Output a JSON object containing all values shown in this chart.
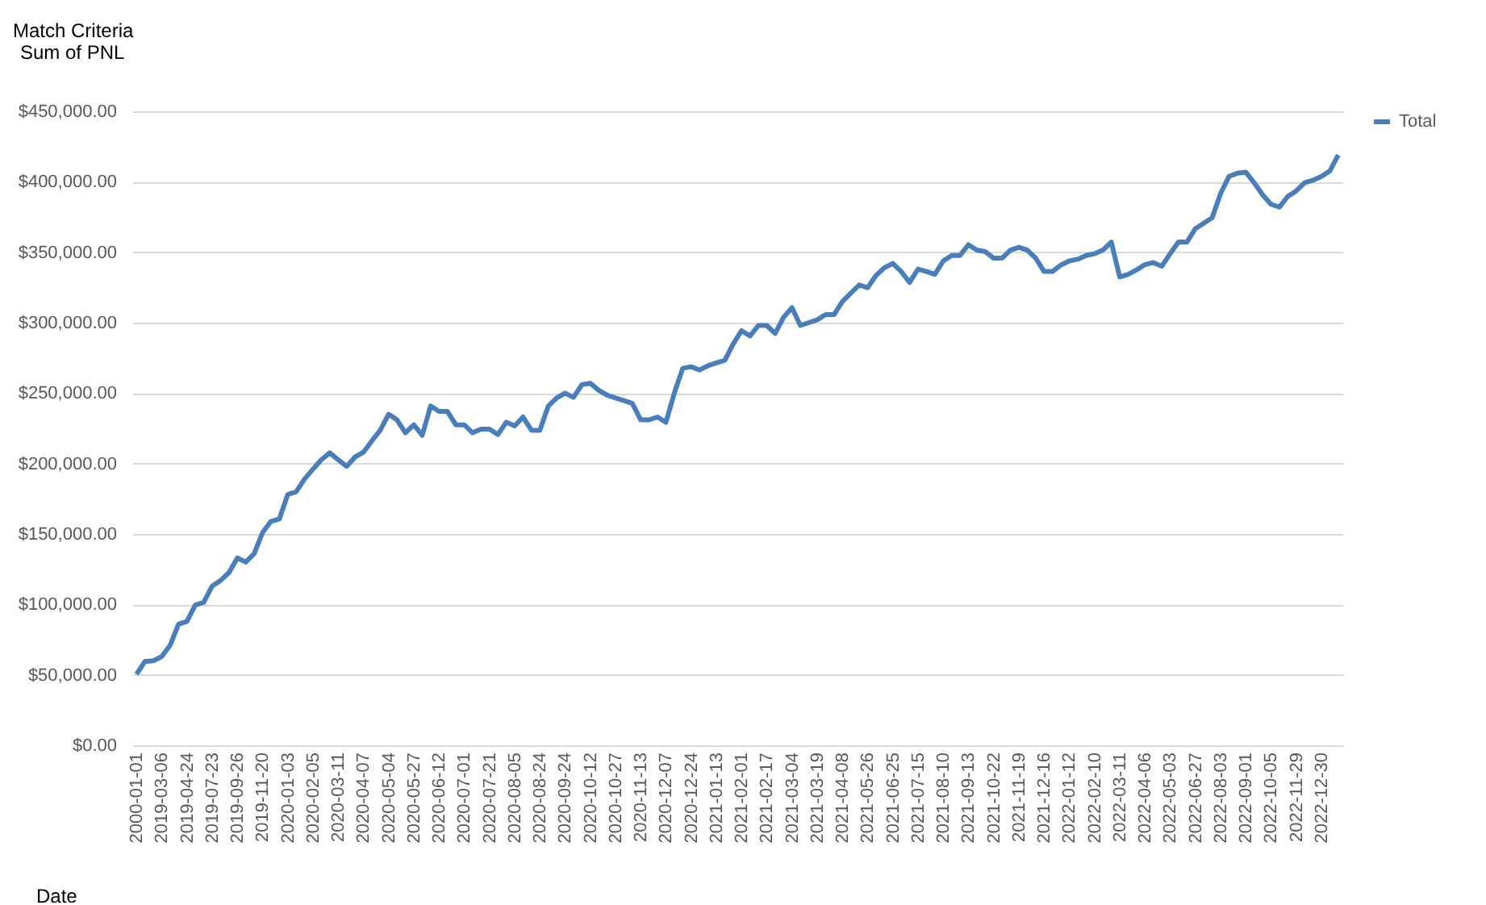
{
  "chart_data": {
    "type": "line",
    "ylabel": "Sum of PNL",
    "xlabel": "Date",
    "annotations": [
      "Match Criteria"
    ],
    "categories": [
      "2000-01-01",
      null,
      null,
      "2019-03-06",
      null,
      null,
      "2019-04-24",
      null,
      null,
      "2019-07-23",
      null,
      null,
      "2019-09-26",
      null,
      null,
      "2019-11-20",
      null,
      null,
      "2020-01-03",
      null,
      null,
      "2020-02-05",
      null,
      null,
      "2020-03-11",
      null,
      null,
      "2020-04-07",
      null,
      null,
      "2020-05-04",
      null,
      null,
      "2020-05-27",
      null,
      null,
      "2020-06-12",
      null,
      null,
      "2020-07-01",
      null,
      null,
      "2020-07-21",
      null,
      null,
      "2020-08-05",
      null,
      null,
      "2020-08-24",
      null,
      null,
      "2020-09-24",
      null,
      null,
      "2020-10-12",
      null,
      null,
      "2020-10-27",
      null,
      null,
      "2020-11-13",
      null,
      null,
      "2020-12-07",
      null,
      null,
      "2020-12-24",
      null,
      null,
      "2021-01-13",
      null,
      null,
      "2021-02-01",
      null,
      null,
      "2021-02-17",
      null,
      null,
      "2021-03-04",
      null,
      null,
      "2021-03-19",
      null,
      null,
      "2021-04-08",
      null,
      null,
      "2021-05-26",
      null,
      null,
      "2021-06-25",
      null,
      null,
      "2021-07-15",
      null,
      null,
      "2021-08-10",
      null,
      null,
      "2021-09-13",
      null,
      null,
      "2021-10-22",
      null,
      null,
      "2021-11-19",
      null,
      null,
      "2021-12-16",
      null,
      null,
      "2022-01-12",
      null,
      null,
      "2022-02-10",
      null,
      null,
      "2022-03-11",
      null,
      null,
      "2022-04-06",
      null,
      null,
      "2022-05-03",
      null,
      null,
      "2022-06-27",
      null,
      null,
      "2022-08-03",
      null,
      null,
      "2022-09-01",
      null,
      null,
      "2022-10-05",
      null,
      null,
      "2022-11-29",
      null,
      null,
      "2022-12-30",
      null,
      null
    ],
    "series": [
      {
        "name": "Total",
        "color": "#4a7ebb",
        "values": [
          50400,
          59500,
          60000,
          63000,
          71000,
          86000,
          88000,
          99600,
          101500,
          113000,
          117000,
          122500,
          133000,
          130000,
          136000,
          151000,
          159000,
          160700,
          178000,
          180000,
          189000,
          196000,
          202700,
          207600,
          202700,
          198000,
          204600,
          208000,
          216000,
          223600,
          235000,
          231000,
          221800,
          227500,
          220000,
          240800,
          237000,
          237000,
          227500,
          227500,
          221800,
          224400,
          224400,
          220600,
          229300,
          226700,
          233000,
          223600,
          223600,
          240800,
          246500,
          250000,
          247000,
          256000,
          257000,
          252000,
          248500,
          246500,
          244700,
          242700,
          231000,
          231000,
          233000,
          229300,
          250000,
          267600,
          268700,
          266400,
          269400,
          271400,
          273300,
          284800,
          294300,
          290500,
          298000,
          298000,
          292300,
          303800,
          310600,
          298000,
          300000,
          302000,
          305700,
          305700,
          315000,
          321000,
          326700,
          324800,
          333500,
          339000,
          342000,
          336300,
          328600,
          338000,
          336300,
          334300,
          343800,
          347700,
          347700,
          355300,
          351500,
          350400,
          345800,
          345800,
          351500,
          353500,
          351500,
          345800,
          336300,
          336300,
          340900,
          343800,
          345000,
          347700,
          348900,
          351500,
          357200,
          332400,
          334300,
          337400,
          341200,
          342700,
          340000,
          348900,
          357200,
          357200,
          366700,
          370600,
          374400,
          391600,
          403800,
          406100,
          406800,
          399300,
          390800,
          384000,
          382000,
          389600,
          393500,
          399300,
          401100,
          403800,
          407600,
          419000
        ]
      }
    ],
    "ylim": [
      0,
      450000
    ],
    "yticks": [
      {
        "value": 0,
        "label": "$0.00"
      },
      {
        "value": 50000,
        "label": "$50,000.00"
      },
      {
        "value": 100000,
        "label": "$100,000.00"
      },
      {
        "value": 150000,
        "label": "$150,000.00"
      },
      {
        "value": 200000,
        "label": "$200,000.00"
      },
      {
        "value": 250000,
        "label": "$250,000.00"
      },
      {
        "value": 300000,
        "label": "$300,000.00"
      },
      {
        "value": 350000,
        "label": "$350,000.00"
      },
      {
        "value": 400000,
        "label": "$400,000.00"
      },
      {
        "value": 450000,
        "label": "$450,000.00"
      }
    ],
    "grid": "y",
    "legend": "right",
    "line_style": "solid",
    "marker": "none"
  }
}
